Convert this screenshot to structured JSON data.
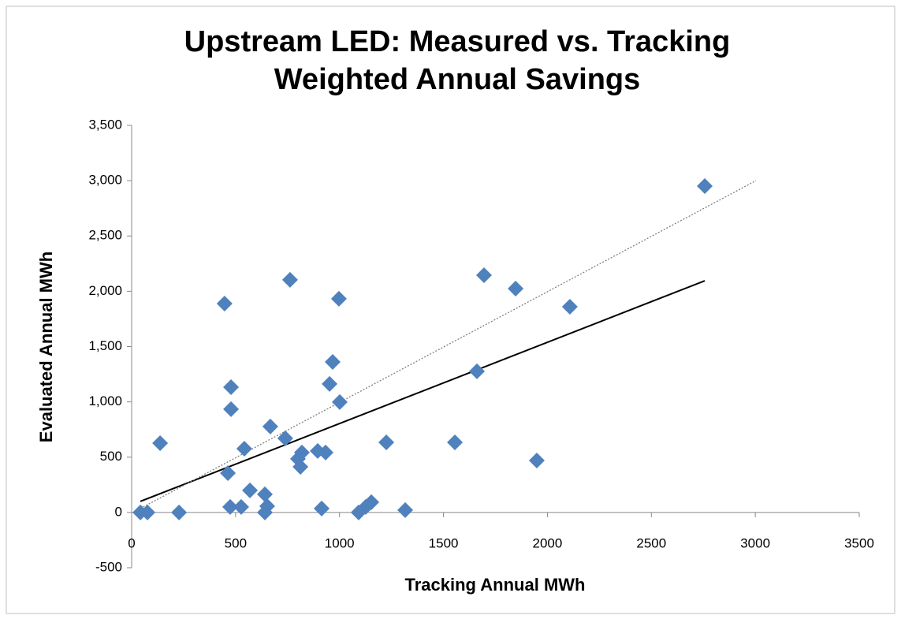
{
  "chart_data": {
    "type": "scatter",
    "title": [
      "Upstream LED: Measured vs. Tracking",
      "Weighted Annual Savings"
    ],
    "x_label": "Tracking Annual MWh",
    "y_label": "Evaluated Annual MWh",
    "xlim": [
      0,
      3500
    ],
    "xticks": [
      0,
      500,
      1000,
      1500,
      2000,
      2500,
      3000,
      3500
    ],
    "ylim": [
      -500,
      3500
    ],
    "yticks": [
      -500,
      0,
      500,
      {
        "value": 1000,
        "label": "1,000"
      },
      {
        "value": 1500,
        "label": "1,500"
      },
      {
        "value": 2000,
        "label": "2,000"
      },
      {
        "value": 2500,
        "label": "2,500"
      },
      {
        "value": 3000,
        "label": "3,000"
      },
      {
        "value": 3500,
        "label": "3,500"
      }
    ],
    "grid": false,
    "series": [
      {
        "color": "#4f81bd",
        "x": [
          42,
          76,
          137,
          228,
          447,
          463,
          478,
          478,
          474,
          527,
          542,
          569,
          641,
          641,
          652,
          667,
          739,
          762,
          800,
          812,
          819,
          895,
          933,
          914,
          952,
          967,
          997,
          1001,
          1092,
          1126,
          1153,
          1225,
          1316,
          1555,
          1661,
          1695,
          1847,
          1949,
          2108,
          2757
        ],
        "values": [
          0,
          0,
          627,
          0,
          1889,
          356,
          1133,
          934,
          50,
          50,
          577,
          200,
          164,
          0,
          57,
          777,
          670,
          2103,
          485,
          413,
          542,
          556,
          542,
          36,
          1162,
          1361,
          1932,
          998,
          0,
          50,
          93,
          634,
          21,
          634,
          1276,
          2145,
          2024,
          470,
          1860,
          2951
        ]
      }
    ],
    "trendlines": [
      {
        "color": "#000000",
        "style": "solid",
        "x": [
          42,
          2757
        ],
        "values": [
          100,
          2095
        ]
      },
      {
        "color": "#808080",
        "style": "dotted",
        "x": [
          42,
          3003
        ],
        "values": [
          36,
          3000
        ]
      }
    ]
  }
}
